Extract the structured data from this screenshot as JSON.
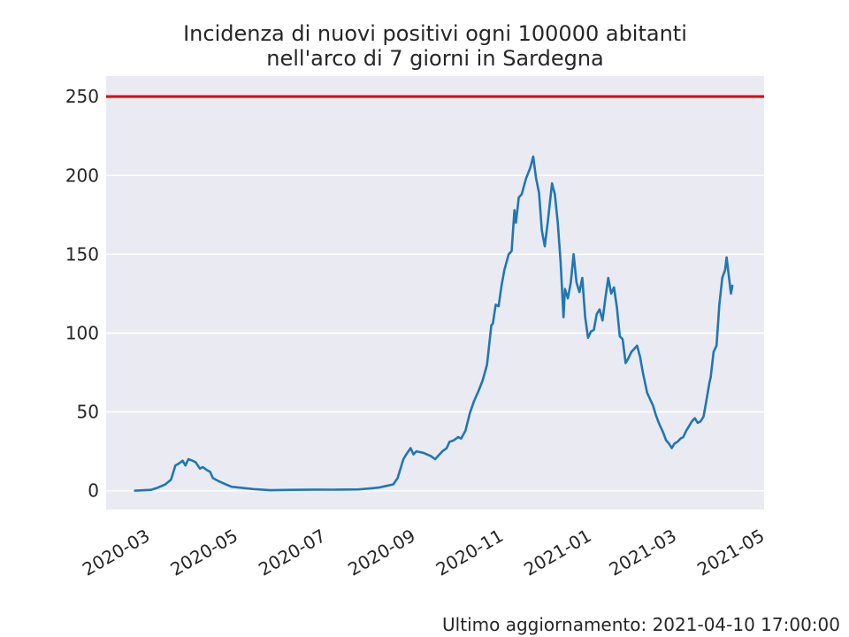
{
  "chart_data": {
    "type": "line",
    "title_lines": [
      "Incidenza di nuovi positivi ogni 100000 abitanti",
      "nell'arco di 7 giorni in Sardegna"
    ],
    "ylim": [
      -12,
      263
    ],
    "xlim": [
      "2020-02-08",
      "2021-05-09"
    ],
    "yticks": [
      0,
      50,
      100,
      150,
      200,
      250
    ],
    "xticks": [
      "2020-03",
      "2020-05",
      "2020-07",
      "2020-09",
      "2020-11",
      "2021-01",
      "2021-03",
      "2021-05"
    ],
    "threshold": 250,
    "threshold_color": "#e00000",
    "line_color": "#1f77b4",
    "background": "#eaeaf2",
    "grid": true,
    "series": [
      {
        "points": [
          [
            "2020-02-28",
            0
          ],
          [
            "2020-03-10",
            0.5
          ],
          [
            "2020-03-15",
            2
          ],
          [
            "2020-03-20",
            4
          ],
          [
            "2020-03-24",
            7
          ],
          [
            "2020-03-27",
            16
          ],
          [
            "2020-03-29",
            17
          ],
          [
            "2020-04-01",
            19
          ],
          [
            "2020-04-03",
            16
          ],
          [
            "2020-04-05",
            20
          ],
          [
            "2020-04-08",
            19
          ],
          [
            "2020-04-10",
            18
          ],
          [
            "2020-04-13",
            14
          ],
          [
            "2020-04-15",
            15
          ],
          [
            "2020-04-18",
            13
          ],
          [
            "2020-04-20",
            12
          ],
          [
            "2020-04-22",
            8
          ],
          [
            "2020-04-26",
            6
          ],
          [
            "2020-05-01",
            4
          ],
          [
            "2020-05-05",
            2.5
          ],
          [
            "2020-05-10",
            2
          ],
          [
            "2020-05-15",
            1.5
          ],
          [
            "2020-05-20",
            1
          ],
          [
            "2020-06-01",
            0.3
          ],
          [
            "2020-06-15",
            0.5
          ],
          [
            "2020-07-01",
            0.7
          ],
          [
            "2020-07-15",
            0.6
          ],
          [
            "2020-08-01",
            0.8
          ],
          [
            "2020-08-10",
            1.5
          ],
          [
            "2020-08-15",
            2
          ],
          [
            "2020-08-20",
            3
          ],
          [
            "2020-08-25",
            4
          ],
          [
            "2020-08-28",
            8
          ],
          [
            "2020-09-01",
            20
          ],
          [
            "2020-09-03",
            23
          ],
          [
            "2020-09-06",
            27
          ],
          [
            "2020-09-08",
            23
          ],
          [
            "2020-09-10",
            25
          ],
          [
            "2020-09-15",
            24
          ],
          [
            "2020-09-20",
            22
          ],
          [
            "2020-09-23",
            20
          ],
          [
            "2020-09-28",
            25
          ],
          [
            "2020-10-01",
            27
          ],
          [
            "2020-10-03",
            31
          ],
          [
            "2020-10-06",
            32
          ],
          [
            "2020-10-09",
            34
          ],
          [
            "2020-10-11",
            33
          ],
          [
            "2020-10-14",
            38
          ],
          [
            "2020-10-17",
            49
          ],
          [
            "2020-10-20",
            57
          ],
          [
            "2020-10-23",
            63
          ],
          [
            "2020-10-26",
            70
          ],
          [
            "2020-10-29",
            80
          ],
          [
            "2020-11-01",
            105
          ],
          [
            "2020-11-02",
            106
          ],
          [
            "2020-11-04",
            118
          ],
          [
            "2020-11-06",
            117
          ],
          [
            "2020-11-08",
            130
          ],
          [
            "2020-11-10",
            140
          ],
          [
            "2020-11-13",
            150
          ],
          [
            "2020-11-15",
            152
          ],
          [
            "2020-11-17",
            178
          ],
          [
            "2020-11-18",
            170
          ],
          [
            "2020-11-20",
            186
          ],
          [
            "2020-11-22",
            188
          ],
          [
            "2020-11-25",
            198
          ],
          [
            "2020-11-28",
            205
          ],
          [
            "2020-11-30",
            212
          ],
          [
            "2020-12-02",
            198
          ],
          [
            "2020-12-04",
            189
          ],
          [
            "2020-12-06",
            165
          ],
          [
            "2020-12-08",
            155
          ],
          [
            "2020-12-10",
            170
          ],
          [
            "2020-12-13",
            195
          ],
          [
            "2020-12-15",
            188
          ],
          [
            "2020-12-17",
            170
          ],
          [
            "2020-12-19",
            145
          ],
          [
            "2020-12-21",
            110
          ],
          [
            "2020-12-22",
            128
          ],
          [
            "2020-12-24",
            122
          ],
          [
            "2020-12-26",
            132
          ],
          [
            "2020-12-28",
            150
          ],
          [
            "2020-12-30",
            132
          ],
          [
            "2021-01-01",
            126
          ],
          [
            "2021-01-03",
            135
          ],
          [
            "2021-01-05",
            110
          ],
          [
            "2021-01-07",
            97
          ],
          [
            "2021-01-09",
            101
          ],
          [
            "2021-01-11",
            102
          ],
          [
            "2021-01-13",
            112
          ],
          [
            "2021-01-15",
            115
          ],
          [
            "2021-01-17",
            108
          ],
          [
            "2021-01-19",
            122
          ],
          [
            "2021-01-21",
            135
          ],
          [
            "2021-01-23",
            125
          ],
          [
            "2021-01-25",
            129
          ],
          [
            "2021-01-27",
            116
          ],
          [
            "2021-01-29",
            98
          ],
          [
            "2021-01-31",
            96
          ],
          [
            "2021-02-02",
            81
          ],
          [
            "2021-02-04",
            84
          ],
          [
            "2021-02-06",
            88
          ],
          [
            "2021-02-08",
            90
          ],
          [
            "2021-02-10",
            92
          ],
          [
            "2021-02-12",
            85
          ],
          [
            "2021-02-14",
            75
          ],
          [
            "2021-02-17",
            62
          ],
          [
            "2021-02-19",
            58
          ],
          [
            "2021-02-21",
            54
          ],
          [
            "2021-02-23",
            48
          ],
          [
            "2021-02-25",
            43
          ],
          [
            "2021-02-28",
            37
          ],
          [
            "2021-03-02",
            32
          ],
          [
            "2021-03-04",
            30
          ],
          [
            "2021-03-06",
            27
          ],
          [
            "2021-03-08",
            30
          ],
          [
            "2021-03-10",
            31
          ],
          [
            "2021-03-12",
            33
          ],
          [
            "2021-03-14",
            34
          ],
          [
            "2021-03-16",
            38
          ],
          [
            "2021-03-18",
            41
          ],
          [
            "2021-03-20",
            44
          ],
          [
            "2021-03-22",
            46
          ],
          [
            "2021-03-24",
            43
          ],
          [
            "2021-03-26",
            44
          ],
          [
            "2021-03-28",
            47
          ],
          [
            "2021-03-30",
            57
          ],
          [
            "2021-04-01",
            68
          ],
          [
            "2021-04-02",
            72
          ],
          [
            "2021-04-04",
            88
          ],
          [
            "2021-04-06",
            92
          ],
          [
            "2021-04-08",
            118
          ],
          [
            "2021-04-10",
            135
          ],
          [
            "2021-04-12",
            140
          ],
          [
            "2021-04-13",
            148
          ],
          [
            "2021-04-15",
            133
          ],
          [
            "2021-04-16",
            125
          ],
          [
            "2021-04-17",
            130
          ]
        ]
      }
    ]
  },
  "footer": {
    "text": "Ultimo aggiornamento: 2021-04-10 17:00:00"
  }
}
